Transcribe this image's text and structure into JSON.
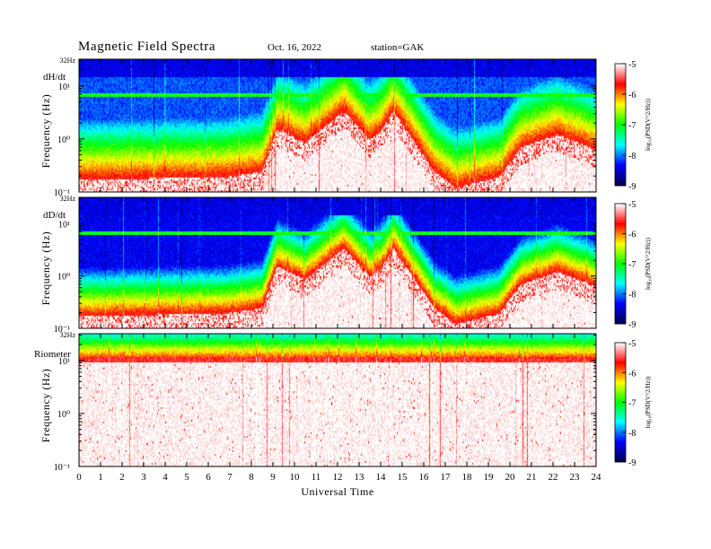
{
  "header": {
    "title": "Magnetic  Field  Spectra",
    "date": "Oct. 16, 2022",
    "station": "station=GAK"
  },
  "colors": {
    "colormap": [
      "#ffffff",
      "#ff0000",
      "#ffff00",
      "#00ff00",
      "#00ffff",
      "#0000ff",
      "#000050"
    ]
  },
  "chart_data": [
    {
      "type": "heatmap",
      "panel_label": "dH/dt",
      "top_label": "32Hz",
      "ylabel": "Frequency  (Hz)",
      "yscale": "log",
      "yticks": [
        "10¹",
        "10⁰",
        "10⁻¹"
      ],
      "xlim": [
        0,
        24
      ],
      "colorbar": {
        "label": "log₁₀(PSD(V^2/Hz))",
        "ticks": [
          "-5",
          "-6",
          "-7",
          "-8",
          "-9"
        ],
        "range": [
          -9,
          -5
        ]
      },
      "boundary_log10_hz": [
        [
          0,
          -0.75
        ],
        [
          6.8,
          -0.7
        ],
        [
          8.5,
          -0.6
        ],
        [
          9.2,
          0.2
        ],
        [
          10.5,
          -0.05
        ],
        [
          12.3,
          0.55
        ],
        [
          13.5,
          0.0
        ],
        [
          14.0,
          0.15
        ],
        [
          14.6,
          0.55
        ],
        [
          16.5,
          -0.6
        ],
        [
          17.5,
          -0.9
        ],
        [
          19.5,
          -0.7
        ],
        [
          20.5,
          -0.15
        ],
        [
          22.2,
          0.1
        ],
        [
          23.5,
          -0.1
        ],
        [
          24,
          -0.2
        ]
      ]
    },
    {
      "type": "heatmap",
      "panel_label": "dD/dt",
      "top_label": "32Hz",
      "ylabel": "Frequency  (Hz)",
      "yscale": "log",
      "yticks": [
        "10¹",
        "10⁰",
        "10⁻¹"
      ],
      "xlim": [
        0,
        24
      ],
      "colorbar": {
        "label": "log₁₀(PSD(V^2/Hz))",
        "ticks": [
          "-5",
          "-6",
          "-7",
          "-8",
          "-9"
        ],
        "range": [
          -9,
          -5
        ]
      },
      "boundary_log10_hz": [
        [
          0,
          -0.75
        ],
        [
          6.8,
          -0.7
        ],
        [
          8.5,
          -0.6
        ],
        [
          9.2,
          0.2
        ],
        [
          10.5,
          -0.05
        ],
        [
          12.3,
          0.55
        ],
        [
          13.5,
          0.0
        ],
        [
          14.0,
          0.15
        ],
        [
          14.6,
          0.55
        ],
        [
          16.5,
          -0.6
        ],
        [
          17.5,
          -0.9
        ],
        [
          19.5,
          -0.7
        ],
        [
          20.5,
          -0.15
        ],
        [
          22.2,
          0.1
        ],
        [
          23.5,
          -0.1
        ],
        [
          24,
          -0.2
        ]
      ]
    },
    {
      "type": "heatmap",
      "panel_label": "Riometer",
      "top_label": "32Hz",
      "ylabel": "Frequency  (Hz)",
      "yscale": "log",
      "yticks": [
        "10¹",
        "10⁰",
        "10⁻¹"
      ],
      "xlim": [
        0,
        24
      ],
      "colorbar": {
        "label": "log₁₀(PSD(V^2/Hz))",
        "ticks": [
          "-5",
          "-6",
          "-7",
          "-8",
          "-9"
        ],
        "range": [
          -9,
          -5
        ]
      },
      "boundary_log10_hz": [
        [
          0,
          0.95
        ],
        [
          24,
          0.95
        ]
      ]
    }
  ],
  "xaxis": {
    "label": "Universal Time",
    "ticks": [
      "0",
      "1",
      "2",
      "3",
      "4",
      "5",
      "6",
      "7",
      "8",
      "9",
      "10",
      "11",
      "12",
      "13",
      "14",
      "15",
      "16",
      "17",
      "18",
      "19",
      "20",
      "21",
      "22",
      "23",
      "24"
    ]
  }
}
